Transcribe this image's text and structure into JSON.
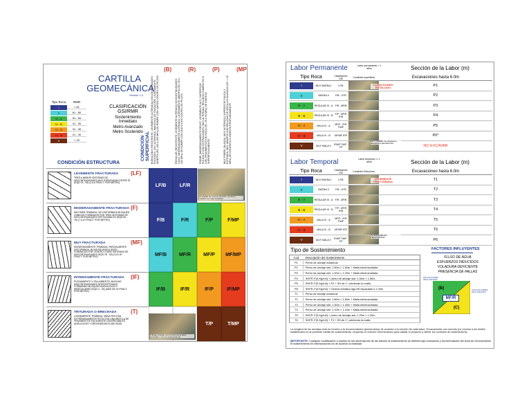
{
  "left": {
    "title_line1": "CARTILLA",
    "title_line2": "GEOMECÁNICA",
    "version": "Versión 1.0",
    "rock_table": {
      "headers": [
        "Tipo Roca",
        "RMR"
      ],
      "rows": [
        {
          "type": "I",
          "rmr": "> 81",
          "color": "#2e3a8c"
        },
        {
          "type": "II",
          "rmr": "61 - 80",
          "color": "#4dd0d6"
        },
        {
          "type": "III - A",
          "rmr": "51 - 60",
          "color": "#39b54a"
        },
        {
          "type": "III - B",
          "rmr": "41 - 50",
          "color": "#f4e21a"
        },
        {
          "type": "IV - A",
          "rmr": "31 - 40",
          "color": "#f29a1f"
        },
        {
          "type": "IV - B",
          "rmr": "21 - 30",
          "color": "#e53b1f"
        },
        {
          "type": "V",
          "rmr": "< 20",
          "color": "#6b2b10"
        }
      ]
    },
    "classification": [
      "CLASIFICACIÓN",
      "GSI/RMR",
      "Sostenimiento",
      "Inmediato",
      "Metro Avanzado",
      "Metro Sostenido"
    ],
    "condicion_superficial": "CONDICIÓN SUPERFICIAL",
    "condicion_estructura": "CONDICIÓN ESTRUCTURA",
    "col_codes": [
      "(B)",
      "(R)",
      "(P)",
      "(MP)"
    ],
    "col_texts": [
      "BUENA (MUY RESISTENTE, LEVEMENTE ALTERADA) DISCONTINUIDADES RUGOSAS, LEV. ALTERADA, MANCHAS DE OXIDACIÓN, LIGERAMENTE ABIERTA (RC 100 A 250 MPa) SE ROMPE CON VARIOS GOLPES DE PICOTA",
      "REGULAR (RESISTENTE, LEVEMENTE ALTERADA) DISCONTINUIDADES LISAS, MODERADAMENTE ALTERADA, LIGERAMENTE ABIERTA (RC 50 A 100 MPa) SE ROMPE CON UNO O DOS GOLPES DE PICOTA",
      "POBRE (MODERADAMENTE RESIST. LEVEMENTE ALT.) SUPERFICIE PULIDA O CON ESTRIACIONES, MUY ALTERADA, RELLENO COMPACTO O CON FRAGMENTOS DE ROCA (RC 25 A 50 MPa) SE INDENTA SUPERFICIALMENTE",
      "MUY POBRE (BLANDA, MUY ALTERADA) SUPERFICIE PULIDA Y ESTRIADA, MUY ABIERTA CON RELLENO DE ARCILLAS BLANDAS (RC < 25 MPa) SE DISGREGA O INDENTA PROFUNDAMENTE"
    ],
    "structures": [
      {
        "code": "(LF)",
        "title": "LEVEMENTE FRACTURADA",
        "desc": "TRES A MENOS SISTEMAS DE DISCONTINUIDADES MUY ESPACIADAS ENTRE SÍ (RQD 75 - 90) (2 A 6 FRACT. POR METRO)"
      },
      {
        "code": "(F)",
        "title": "MODERADAMENTE FRACTURADA",
        "desc": "MUY BIEN TRABADA, NO DISTURBADA BLOQUES CÚBICOS FORMADOS POR TRES SISTEMAS DE DISCONTINUIDADES ORTOGONALES (RQD 50 - 75) (7 A 12 FRACT. POR METRO)"
      },
      {
        "code": "(MF)",
        "title": "MUY FRACTURADA",
        "desc": "MODERADAMENTE TRABADA, PARCIALMENTE DISTURBADA, BLOQUES ANGULOSOS FORMADOS POR CUATRO O MÁS SISTEMAS DE DISCONTINUIDADES (RQD 25 - 50) (13 A 20 FRACT. POR METRO)"
      },
      {
        "code": "(IF)",
        "title": "INTENSAMENTE FRACTURADA",
        "desc": "PLEGAMIENTO Y FALLAMIENTO, MUCHAS DISCONTINUIDADES INTERCEPTADAS FORMANDO BLOQUES ANGULOSOS O IRREGULARES (RQD 0 - 25) (MÁS DE 20 FRACT. POR METRO)"
      },
      {
        "code": "(T)",
        "title": "TRITURADA O BRECHADA",
        "desc": "LIGERAMENTE TRABADA, MASA ROCOSA EXTREMADAMENTE ROTA CON UNA MEZCLA DE FRAGMENTOS FÁCILMENTE DISGREGABLES, ANGULOSOS Y REDONDEADOS (SIN RQD)"
      }
    ],
    "grid_labels": [
      [
        "LF/B",
        "LF/R",
        "",
        ""
      ],
      [
        "F/B",
        "F/R",
        "F/P",
        "F/MP"
      ],
      [
        "MF/B",
        "MF/R",
        "MF/P",
        "MF/MP"
      ],
      [
        "IF/B",
        "IF/R",
        "IF/P",
        "IF/MP"
      ],
      [
        "",
        "",
        "T/P",
        "T/MP"
      ]
    ],
    "grid_colors": [
      [
        "#2e3a8c",
        "#2e3a8c",
        "#ffffff",
        "#ffffff"
      ],
      [
        "#2e3a8c",
        "#4dd0d6",
        "#39b54a",
        "#f4e21a"
      ],
      [
        "#4dd0d6",
        "#39b54a",
        "#f4e21a",
        "#f29a1f"
      ],
      [
        "#39b54a",
        "#f4e21a",
        "#f29a1f",
        "#e53b1f"
      ],
      [
        "#ffffff",
        "#ffffff",
        "#6b2b10",
        "#6b2b10"
      ]
    ],
    "photo_caption_top": "Al estallar de roca se produce, pernos y mallado de cada actividad",
    "photo_caption_bottom": "Trabajo iniciado con el inicio de la labor, excavado y con su sostenimiento"
  },
  "right": {
    "permanente": {
      "title": "Labor Permanente",
      "life": "Labor permanente > 1 años",
      "section": "Sección de la Labor (m)",
      "headers": [
        "Tipo Roca",
        "Clasificación GSI",
        "Condición superficial",
        "Excavaciones hasta 6.0m"
      ],
      "rows": [
        {
          "type": "I",
          "desc": "MUY BUENA I",
          "gsi": "LF/B",
          "sup": "P1",
          "color": "#2e3a8c"
        },
        {
          "type": "II",
          "desc": "BUENA II",
          "gsi": "F/B - LF/R",
          "sup": "P2",
          "color": "#4dd0d6"
        },
        {
          "type": "III - A",
          "desc": "REGULAR III - A",
          "gsi": "F/R - MF/B",
          "sup": "P3",
          "color": "#39b54a"
        },
        {
          "type": "III - B",
          "desc": "REGULAR III - B",
          "gsi": "F/P - MF/R IF/B",
          "sup": "P4",
          "color": "#f4e21a"
        },
        {
          "type": "IV - A",
          "desc": "MALA IV - A",
          "gsi": "MF/P - IF/R F/MP",
          "sup": "P5",
          "color": "#f29a1f"
        },
        {
          "type": "IV - B",
          "desc": "MALA IV - B",
          "gsi": "MF/MP IF/P",
          "sup": "P6*",
          "color": "#e53b1f"
        },
        {
          "type": "V",
          "desc": "MUY MALA V",
          "gsi": "IF/MP T/MP - T/P",
          "sup": "NO EXCAVAR",
          "color": "#6b2b10"
        }
      ],
      "photo_label1": "LLANA SONDO ESTALLIDO",
      "photo_label2": "MUY POBRE: Se disgrega o desmorona parcialmente"
    },
    "temporal": {
      "title": "Labor Temporal",
      "life": "Labor temporal <= 1 años",
      "section": "Sección de la Labor (m)",
      "headers": [
        "Tipo Roca",
        "Clasificación GSI",
        "Condición Estructura",
        "Excavaciones hasta 6.0m"
      ],
      "rows": [
        {
          "type": "I",
          "desc": "MUY BUENA I",
          "gsi": "LF/B",
          "sup": "T1",
          "color": "#2e3a8c"
        },
        {
          "type": "II",
          "desc": "BUENA II",
          "gsi": "F/B - LF/R",
          "sup": "T2",
          "color": "#4dd0d6"
        },
        {
          "type": "III - A",
          "desc": "REGULAR III - A",
          "gsi": "F/R - MF/B",
          "sup": "T3",
          "color": "#39b54a"
        },
        {
          "type": "III - B",
          "desc": "REGULAR III - B",
          "gsi": "F/P - MF/R IF/B",
          "sup": "T4",
          "color": "#f4e21a"
        },
        {
          "type": "IV - A",
          "desc": "MALA IV - A",
          "gsi": "MF/P - IF/R F/MP",
          "sup": "T5",
          "color": "#f29a1f"
        },
        {
          "type": "IV - B",
          "desc": "MALA IV - B",
          "gsi": "MF/MP IF/P",
          "sup": "T6",
          "color": "#e53b1f"
        },
        {
          "type": "V",
          "desc": "MUY MALA V",
          "gsi": "IF/MP T/MP - T/P",
          "sup": "P6",
          "color": "#6b2b10"
        }
      ],
      "photo_label1": "LEVEMENTE FRACTURADA",
      "photo_label2": "INTENSAMENTE FRACTURADA"
    },
    "sostenimiento": {
      "title": "Tipo de Sostenimiento",
      "headers": [
        "Cod.",
        "Descripción del Sostenimiento"
      ],
      "rows": [
        [
          "P1",
          "Perno de anclaje ocasional"
        ],
        [
          "P2",
          "Perno de anclaje sist. 1.50m × 1.50m + Malla electrosoldada"
        ],
        [
          "P3",
          "Perno de anclaje sist. 1.20m × 1.20m + Malla electrosoldada"
        ],
        [
          "P4",
          "SHFR 2\"(5 Kg/m3) + perno de anclaje sist. 1.50m × 1.50m"
        ],
        [
          "P5",
          "SHFR 2\"(5 Kg/m3) + P2 + SH de 1\" cubriendo la malla"
        ],
        [
          "P6",
          "SHFR 2\"(5 Kg/m3) + Cimbra metálica riga H6 espaciado a 1.20m"
        ],
        [
          "T1",
          "Perno de anclaje ocasional"
        ],
        [
          "T2",
          "Perno de anclaje sist. 1.80m × 1.80m + Malla electrosoldada"
        ],
        [
          "T3",
          "Perno de anclaje sist. 1.30m × 1.30m + Malla electrosoldada"
        ],
        [
          "T4",
          "Perno de anclaje sist. 1.10m × 1.10m + Malla electrosoldada"
        ],
        [
          "T5",
          "SHFR 2\"(5 Kg/m3) + perno de anclaje sist. 1.20m × 1.20m"
        ],
        [
          "T6",
          "SHFR 2\"(5 Kg/m3) + T3 + SH de 1\" cubriendo la malla"
        ]
      ]
    },
    "factores": {
      "title": "FACTORES INFLUYENTES",
      "items": [
        "FLUJO DE AGUA",
        "ESFUERZOS INDUCIDOS",
        "VOLADURA DEFICIENTE",
        "PRESENCIA DE FALLAS"
      ],
      "label_sin": "SIN FACTORES INFLUYENTES",
      "label_con": "CON FACTORES INFLUYENTES",
      "code_b": "(B)",
      "code_c": "(C)",
      "code_mfr": "MF/R"
    },
    "note1": "La longitud de los anclajes esta en función a la recomendación geomecánica de acuerdo a la sección de cada labor. Excavaciones con sección por encima a los límites establecidos en la presente cartilla de sostenimiento, requerirá un informe Geomecánico para validar el proyecto y definir los controles de sostenimiento.",
    "note_important_label": "IMPORTANTE:",
    "note2": "Cualquier modificación o cambio en las dimensiones de las labores al sostenimiento se definirá bajo evaluación y recomendación del Área de Geomecánica. El sostenimiento en intersecciones es de acuerdo al estándar"
  }
}
